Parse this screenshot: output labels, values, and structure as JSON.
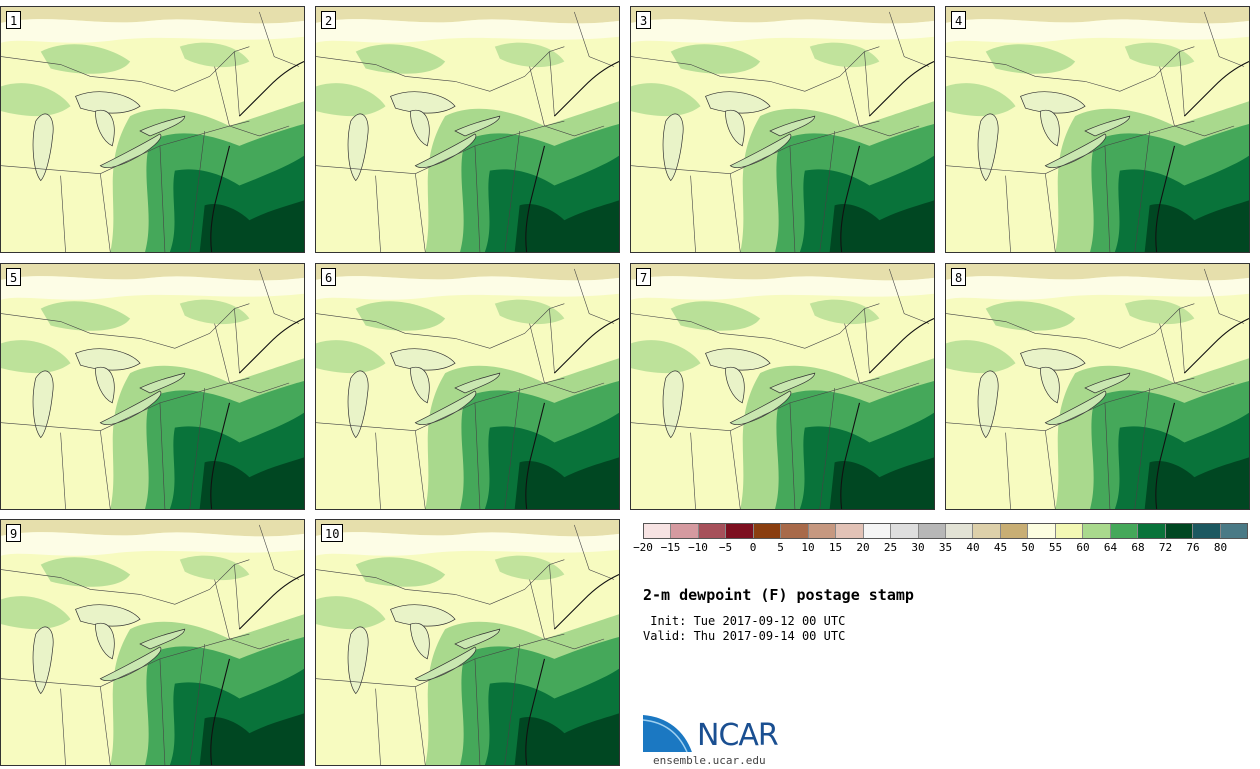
{
  "panels": [
    {
      "label": "1"
    },
    {
      "label": "2"
    },
    {
      "label": "3"
    },
    {
      "label": "4"
    },
    {
      "label": "5"
    },
    {
      "label": "6"
    },
    {
      "label": "7"
    },
    {
      "label": "8"
    },
    {
      "label": "9"
    },
    {
      "label": "10"
    }
  ],
  "colorbar": {
    "tick_labels": [
      "−20",
      "−15",
      "−10",
      "−5",
      "0",
      "5",
      "10",
      "15",
      "20",
      "25",
      "30",
      "35",
      "40",
      "45",
      "50",
      "55",
      "60",
      "64",
      "68",
      "72",
      "76",
      "80"
    ],
    "colors": [
      "#f7e3e3",
      "#d59aa0",
      "#a6505a",
      "#7d1020",
      "#8a3e10",
      "#a86a4a",
      "#c69880",
      "#e2c2b6",
      "#f5f5f5",
      "#dedede",
      "#b7b7b7",
      "#e2e2d5",
      "#ddd0aa",
      "#c8ae74",
      "#fcfde0",
      "#f3f8b4",
      "#a9d98d",
      "#45a85a",
      "#09733a",
      "#004722",
      "#1c5860",
      "#4a7a86"
    ]
  },
  "title": "2-m dewpoint (F) postage stamp",
  "init_text": " Init: Tue 2017-09-12 00 UTC",
  "valid_text": "Valid: Thu 2017-09-14 00 UTC",
  "logo": {
    "text": "NCAR",
    "site": "ensemble.ucar.edu"
  }
}
